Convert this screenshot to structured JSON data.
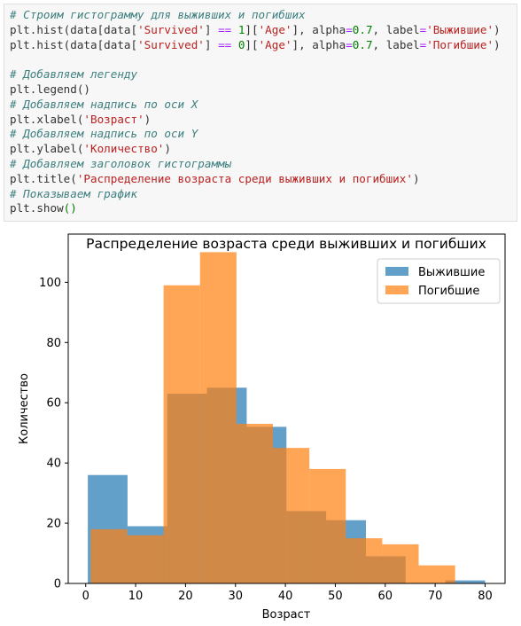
{
  "code_cell": {
    "lines": [
      {
        "kind": "comment",
        "text": "# Строим гистограмму для выживших и погибших"
      },
      {
        "kind": "code",
        "tokens": [
          {
            "t": "plt.hist(data[data[",
            "c": ""
          },
          {
            "t": "'Survived'",
            "c": "string"
          },
          {
            "t": "] ",
            "c": ""
          },
          {
            "t": "==",
            "c": "op"
          },
          {
            "t": " ",
            "c": ""
          },
          {
            "t": "1",
            "c": "number"
          },
          {
            "t": "][",
            "c": ""
          },
          {
            "t": "'Age'",
            "c": "string"
          },
          {
            "t": "], alpha",
            "c": ""
          },
          {
            "t": "=",
            "c": "op"
          },
          {
            "t": "0.7",
            "c": "number"
          },
          {
            "t": ", label",
            "c": ""
          },
          {
            "t": "=",
            "c": "op"
          },
          {
            "t": "'Выжившие'",
            "c": "string"
          },
          {
            "t": ")",
            "c": ""
          }
        ]
      },
      {
        "kind": "code",
        "tokens": [
          {
            "t": "plt.hist(data[data[",
            "c": ""
          },
          {
            "t": "'Survived'",
            "c": "string"
          },
          {
            "t": "] ",
            "c": ""
          },
          {
            "t": "==",
            "c": "op"
          },
          {
            "t": " ",
            "c": ""
          },
          {
            "t": "0",
            "c": "number"
          },
          {
            "t": "][",
            "c": ""
          },
          {
            "t": "'Age'",
            "c": "string"
          },
          {
            "t": "], alpha",
            "c": ""
          },
          {
            "t": "=",
            "c": "op"
          },
          {
            "t": "0.7",
            "c": "number"
          },
          {
            "t": ", label",
            "c": ""
          },
          {
            "t": "=",
            "c": "op"
          },
          {
            "t": "'Погибшие'",
            "c": "string"
          },
          {
            "t": ")",
            "c": ""
          }
        ]
      },
      {
        "kind": "blank",
        "text": ""
      },
      {
        "kind": "comment",
        "text": "# Добавляем легенду"
      },
      {
        "kind": "code",
        "tokens": [
          {
            "t": "plt.legend()",
            "c": ""
          }
        ]
      },
      {
        "kind": "comment",
        "text": "# Добавляем надпись по оси X"
      },
      {
        "kind": "code",
        "tokens": [
          {
            "t": "plt.xlabel(",
            "c": ""
          },
          {
            "t": "'Возраст'",
            "c": "string"
          },
          {
            "t": ")",
            "c": ""
          }
        ]
      },
      {
        "kind": "comment",
        "text": "# Добавляем надпись по оси Y"
      },
      {
        "kind": "code",
        "tokens": [
          {
            "t": "plt.ylabel(",
            "c": ""
          },
          {
            "t": "'Количество'",
            "c": "string"
          },
          {
            "t": ")",
            "c": ""
          }
        ]
      },
      {
        "kind": "comment",
        "text": "# Добавляем заголовок гистограммы"
      },
      {
        "kind": "code",
        "tokens": [
          {
            "t": "plt.title(",
            "c": ""
          },
          {
            "t": "'Распределение возраста среди выживших и погибших'",
            "c": "string"
          },
          {
            "t": ")",
            "c": ""
          }
        ]
      },
      {
        "kind": "comment",
        "text": "# Показываем график"
      },
      {
        "kind": "code",
        "tokens": [
          {
            "t": "plt.show",
            "c": ""
          },
          {
            "t": "()",
            "c": "paren-green"
          }
        ]
      }
    ]
  },
  "colors": {
    "survived": "#1f77b4",
    "died": "#ff7f0e",
    "overlap": "#d4883f"
  },
  "chart_data": {
    "type": "bar",
    "title": "Распределение возраста среди выживших и погибших",
    "xlabel": "Возраст",
    "ylabel": "Количество",
    "xlim": [
      -3.5,
      84
    ],
    "ylim": [
      0,
      116
    ],
    "x_ticks": [
      0,
      10,
      20,
      30,
      40,
      50,
      60,
      70,
      80
    ],
    "y_ticks": [
      0,
      20,
      40,
      60,
      80,
      100
    ],
    "alpha": 0.7,
    "legend_position": "top-right",
    "series": [
      {
        "name": "Выжившие",
        "color": "#1f77b4",
        "bin_edges": [
          0.42,
          8.38,
          16.34,
          24.29,
          32.25,
          40.21,
          48.17,
          56.13,
          64.08,
          72.04,
          80.0
        ],
        "counts": [
          36,
          19,
          63,
          65,
          52,
          24,
          21,
          9,
          0,
          1
        ]
      },
      {
        "name": "Погибшие",
        "color": "#ff7f0e",
        "bin_edges": [
          1.0,
          8.3,
          15.6,
          22.9,
          30.2,
          37.5,
          44.8,
          52.1,
          59.4,
          66.7,
          74.0
        ],
        "counts": [
          18,
          16,
          99,
          110,
          53,
          45,
          38,
          15,
          13,
          6
        ]
      }
    ]
  }
}
